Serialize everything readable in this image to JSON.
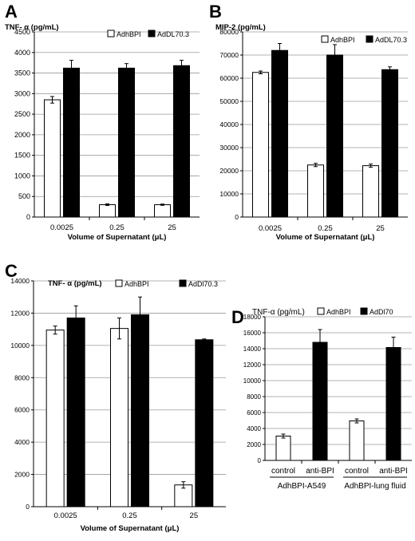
{
  "chart_data": [
    {
      "panel": "A",
      "type": "bar",
      "title": "TNF- α (pg/mL)",
      "xlabel": "Volume of Supernatant (μL)",
      "ylabel": "",
      "categories": [
        "0.0025",
        "0.25",
        "25"
      ],
      "series": [
        {
          "name": "AdhBPI",
          "values": [
            2850,
            300,
            300
          ],
          "errors": [
            80,
            20,
            15
          ]
        },
        {
          "name": "AdDL70.3",
          "values": [
            3620,
            3620,
            3680
          ],
          "errors": [
            190,
            110,
            130
          ]
        }
      ],
      "ylim": [
        0,
        4500
      ],
      "yticks": [
        0,
        500,
        1000,
        1500,
        2000,
        2500,
        3000,
        3500,
        4000,
        4500
      ],
      "ytick_labels": [
        "0",
        "500",
        "1000",
        "1500",
        "2000",
        "2500",
        "3000",
        "3500",
        "4000",
        "4500"
      ],
      "grid": true,
      "legend": "top-right"
    },
    {
      "panel": "B",
      "type": "bar",
      "title": "MIP-2 (pg/mL)",
      "xlabel": "Volume of Supernatant (μL)",
      "ylabel": "",
      "categories": [
        "0.0025",
        "0.25",
        "25"
      ],
      "series": [
        {
          "name": "AdhBPI",
          "values": [
            62500,
            22500,
            22200
          ],
          "errors": [
            600,
            700,
            700
          ]
        },
        {
          "name": "AdDL70.3",
          "values": [
            72000,
            70000,
            63700
          ],
          "errors": [
            3000,
            4500,
            1200
          ]
        }
      ],
      "ylim": [
        0,
        80000
      ],
      "yticks": [
        0,
        10000,
        20000,
        30000,
        40000,
        50000,
        60000,
        70000,
        80000
      ],
      "ytick_labels": [
        "0",
        "10000",
        "20000",
        "30000",
        "40000",
        "50000",
        "60000",
        "70000",
        "80000"
      ],
      "grid": true,
      "legend": "top-right"
    },
    {
      "panel": "C",
      "type": "bar",
      "title": "TNF- α (pg/mL)",
      "xlabel": "Volume of Supernatant (μL)",
      "ylabel": "",
      "categories": [
        "0.0025",
        "0.25",
        "25"
      ],
      "series": [
        {
          "name": "AdhBPI",
          "values": [
            10950,
            11050,
            1350
          ],
          "errors": [
            250,
            650,
            200
          ]
        },
        {
          "name": "AdDl70.3",
          "values": [
            11700,
            11900,
            10350
          ],
          "errors": [
            750,
            1100,
            50
          ]
        }
      ],
      "ylim": [
        0,
        14000
      ],
      "yticks": [
        0,
        2000,
        4000,
        6000,
        8000,
        10000,
        12000,
        14000
      ],
      "ytick_labels": [
        "0",
        "2000",
        "4000",
        "6000",
        "8000",
        "10000",
        "12000",
        "14000"
      ],
      "grid": true,
      "legend": "top-right"
    },
    {
      "panel": "D",
      "type": "bar",
      "title": "TNF-α (pg/mL)",
      "xlabel": "",
      "ylabel": "",
      "categories": [
        "control",
        "anti-BPI",
        "control",
        "anti-BPI"
      ],
      "groups": [
        "AdhBPI-A549",
        "AdhBPI-lung fluid"
      ],
      "series": [
        {
          "name": "AdhBPI",
          "values": [
            3050,
            null,
            4950,
            null
          ],
          "errors": [
            250,
            null,
            250,
            null
          ]
        },
        {
          "name": "AdDl70",
          "values": [
            null,
            14800,
            null,
            14150
          ],
          "errors": [
            null,
            1600,
            null,
            1300
          ]
        }
      ],
      "ylim": [
        0,
        18000
      ],
      "yticks": [
        0,
        2000,
        4000,
        6000,
        8000,
        10000,
        12000,
        14000,
        16000,
        18000
      ],
      "ytick_labels": [
        "0",
        "2000",
        "4000",
        "6000",
        "8000",
        "10000",
        "12000",
        "14000",
        "16000",
        "18000"
      ],
      "grid": true,
      "legend": "top-right"
    }
  ],
  "colors": {
    "open_bar": "#ffffff",
    "filled_bar": "#000000",
    "grid": "#9a9a9a",
    "axis": "#000000"
  }
}
